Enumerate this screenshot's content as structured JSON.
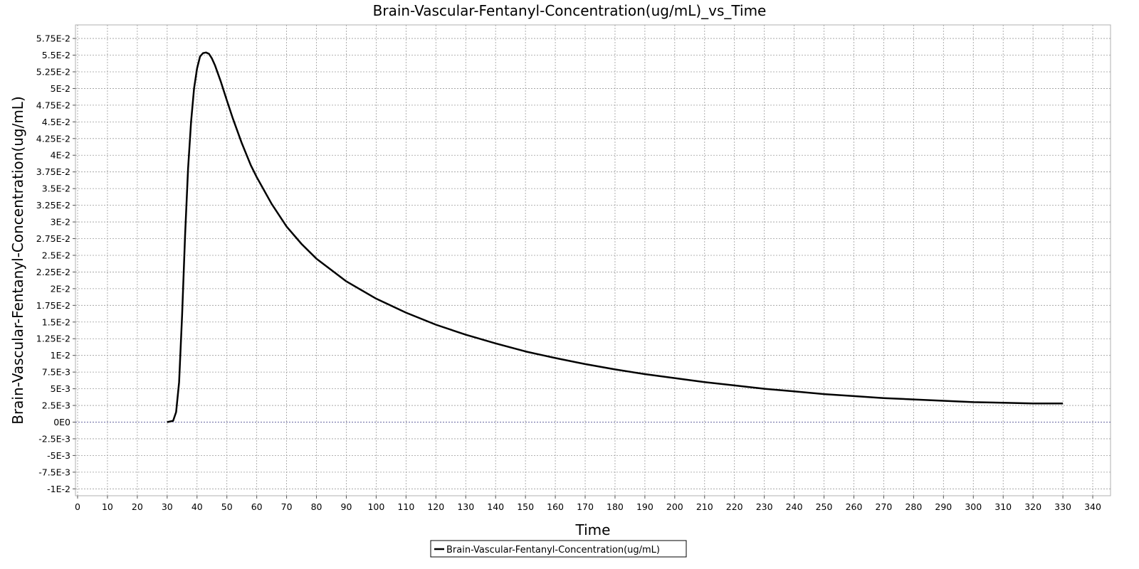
{
  "chart_data": {
    "type": "line",
    "title": "Brain-Vascular-Fentanyl-Concentration(ug/mL)_vs_Time",
    "xlabel": "Time",
    "ylabel": "Brain-Vascular-Fentanyl-Concentration(ug/mL)",
    "xlim": [
      0,
      345
    ],
    "ylim": [
      -0.0105,
      0.059
    ],
    "x_ticks": [
      0,
      10,
      20,
      30,
      40,
      50,
      60,
      70,
      80,
      90,
      100,
      110,
      120,
      130,
      140,
      150,
      160,
      170,
      180,
      190,
      200,
      210,
      220,
      230,
      240,
      250,
      260,
      270,
      280,
      290,
      300,
      310,
      320,
      330,
      340
    ],
    "x_tick_labels": [
      "0",
      "10",
      "20",
      "30",
      "40",
      "50",
      "60",
      "70",
      "80",
      "90",
      "100",
      "110",
      "120",
      "130",
      "140",
      "150",
      "160",
      "170",
      "180",
      "190",
      "200",
      "210",
      "220",
      "230",
      "240",
      "250",
      "260",
      "270",
      "280",
      "290",
      "300",
      "310",
      "320",
      "330",
      "340"
    ],
    "y_ticks": [
      -0.01,
      -0.0075,
      -0.005,
      -0.0025,
      0,
      0.0025,
      0.005,
      0.0075,
      0.01,
      0.0125,
      0.015,
      0.0175,
      0.02,
      0.0225,
      0.025,
      0.0275,
      0.03,
      0.0325,
      0.035,
      0.0375,
      0.04,
      0.0425,
      0.045,
      0.0475,
      0.05,
      0.0525,
      0.055,
      0.0575
    ],
    "y_tick_labels": [
      "-1E-2",
      "-7.5E-3",
      "-5E-3",
      "-2.5E-3",
      "0E0",
      "2.5E-3",
      "5E-3",
      "7.5E-3",
      "1E-2",
      "1.25E-2",
      "1.5E-2",
      "1.75E-2",
      "2E-2",
      "2.25E-2",
      "2.5E-2",
      "2.75E-2",
      "3E-2",
      "3.25E-2",
      "3.5E-2",
      "3.75E-2",
      "4E-2",
      "4.25E-2",
      "4.5E-2",
      "4.75E-2",
      "5E-2",
      "5.25E-2",
      "5.5E-2",
      "5.75E-2"
    ],
    "grid": true,
    "legend_position": "bottom-center",
    "series": [
      {
        "name": "Brain-Vascular-Fentanyl-Concentration(ug/mL)",
        "color": "#000000",
        "x": [
          30,
          32,
          33,
          34,
          35,
          36,
          37,
          38,
          39,
          40,
          41,
          42,
          43,
          44,
          45,
          46,
          48,
          50,
          52,
          55,
          58,
          60,
          65,
          70,
          75,
          80,
          90,
          100,
          110,
          120,
          130,
          140,
          150,
          160,
          170,
          180,
          190,
          200,
          210,
          220,
          230,
          240,
          250,
          260,
          270,
          280,
          290,
          300,
          310,
          320,
          330
        ],
        "y": [
          0,
          0.0002,
          0.0015,
          0.006,
          0.016,
          0.028,
          0.038,
          0.045,
          0.05,
          0.053,
          0.0548,
          0.0553,
          0.0554,
          0.0552,
          0.0545,
          0.0535,
          0.051,
          0.0482,
          0.0455,
          0.0418,
          0.0385,
          0.0367,
          0.0327,
          0.0293,
          0.0267,
          0.0245,
          0.0211,
          0.0185,
          0.0164,
          0.0146,
          0.0131,
          0.0118,
          0.0106,
          0.0096,
          0.0087,
          0.0079,
          0.0072,
          0.0066,
          0.006,
          0.0055,
          0.005,
          0.0046,
          0.0042,
          0.0039,
          0.0036,
          0.0034,
          0.0032,
          0.003,
          0.0029,
          0.0028,
          0.0028
        ]
      }
    ]
  }
}
